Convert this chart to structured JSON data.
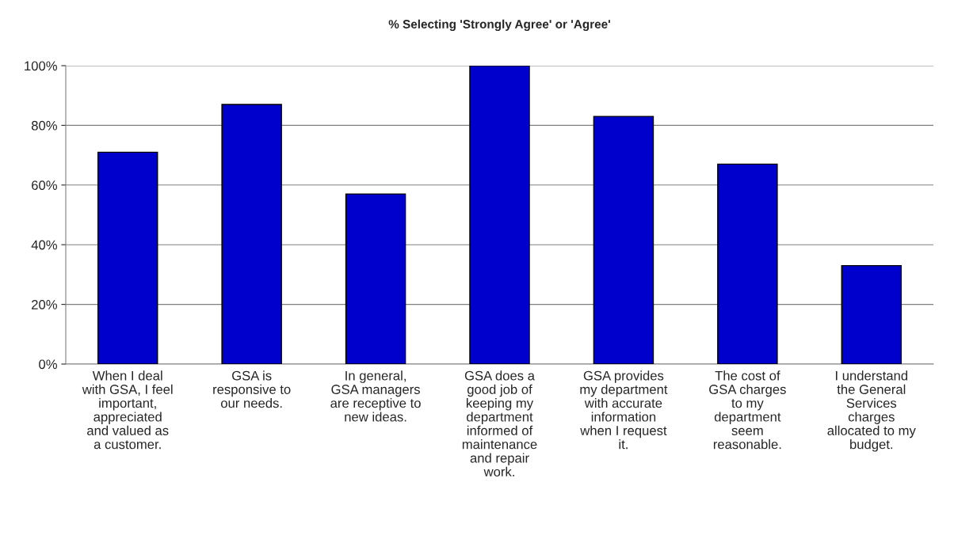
{
  "chart_data": {
    "type": "bar",
    "title": "% Selecting 'Strongly Agree' or 'Agree'",
    "categories": [
      "When I deal\nwith GSA, I feel\nimportant,\nappreciated\nand valued as\na customer.",
      "GSA is\nresponsive to\nour needs.",
      "In general,\nGSA managers\nare receptive to\nnew ideas.",
      "GSA does a\ngood job of\nkeeping my\ndepartment\ninformed of\nmaintenance\nand repair\nwork.",
      "GSA provides\nmy department\nwith accurate\ninformation\nwhen I request\nit.",
      "The cost of\nGSA charges\nto my\ndepartment\nseem\nreasonable.",
      "I understand\nthe General\nServices\ncharges\nallocated to my\nbudget."
    ],
    "values": [
      71,
      87,
      57,
      100,
      83,
      67,
      33
    ],
    "color": "#0000cc",
    "ylim": [
      0,
      100
    ],
    "yticks": [
      {
        "value": 0,
        "label": "0%"
      },
      {
        "value": 20,
        "label": "20%"
      },
      {
        "value": 40,
        "label": "40%"
      },
      {
        "value": 60,
        "label": "60%"
      },
      {
        "value": 80,
        "label": "80%"
      },
      {
        "value": 100,
        "label": "100%"
      }
    ],
    "grid": "y"
  }
}
